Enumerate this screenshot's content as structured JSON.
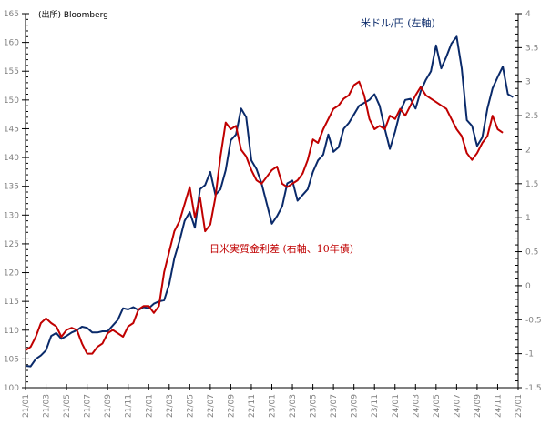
{
  "chart_data": {
    "type": "line",
    "source_note": "(出所) Bloomberg",
    "x_tick_labels": [
      "21/01",
      "21/03",
      "21/05",
      "21/07",
      "21/09",
      "21/11",
      "22/01",
      "22/03",
      "22/05",
      "22/07",
      "22/09",
      "22/11",
      "23/01",
      "23/03",
      "23/05",
      "23/07",
      "23/09",
      "23/11",
      "24/01",
      "24/03",
      "24/05",
      "24/07",
      "24/09",
      "24/11",
      "25/01"
    ],
    "x_range": [
      "2021-01",
      "2025-01"
    ],
    "left_axis": {
      "range": [
        100,
        165
      ],
      "ticks": [
        100,
        105,
        110,
        115,
        120,
        125,
        130,
        135,
        140,
        145,
        150,
        155,
        160,
        165
      ]
    },
    "right_axis": {
      "range": [
        -1.5,
        4
      ],
      "ticks": [
        "-1.5",
        "-1",
        "-0.5",
        "0",
        "0.5",
        "1",
        "1.5",
        "2",
        "2.5",
        "3",
        "3.5",
        "4"
      ]
    },
    "grid": false,
    "x_start": "2021-01",
    "points_per_month": 2,
    "series": [
      {
        "name": "米ドル/円 (左軸)",
        "axis": "left",
        "color": "#0a2a6a",
        "values": [
          103.8,
          103.7,
          105.0,
          105.6,
          106.5,
          109.0,
          109.5,
          108.5,
          109.0,
          109.6,
          110.0,
          110.6,
          110.4,
          109.6,
          109.6,
          109.8,
          109.8,
          110.8,
          111.8,
          113.8,
          113.6,
          114.0,
          113.5,
          114.0,
          113.8,
          114.6,
          115.0,
          115.2,
          118.0,
          122.5,
          125.5,
          129.0,
          130.5,
          127.8,
          134.5,
          135.2,
          137.5,
          133.5,
          134.5,
          137.8,
          143.0,
          144.0,
          148.5,
          147.0,
          139.5,
          138.0,
          135.5,
          132.0,
          128.5,
          129.8,
          131.5,
          135.5,
          136.0,
          132.5,
          133.5,
          134.5,
          137.5,
          139.5,
          140.5,
          144.0,
          141.0,
          141.8,
          145.0,
          146.0,
          147.5,
          149.0,
          149.5,
          150.0,
          151.0,
          149.0,
          145.0,
          141.5,
          144.5,
          148.0,
          150.0,
          150.2,
          148.5,
          151.5,
          153.5,
          155.0,
          159.5,
          155.5,
          157.5,
          159.8,
          161.0,
          155.5,
          146.5,
          145.5,
          142.0,
          143.5,
          148.5,
          152.0,
          154.0,
          155.8,
          151.0,
          150.5
        ]
      },
      {
        "name": "日米実質金利差 (右軸、10年債)",
        "axis": "right",
        "color": "#c00000",
        "values": [
          -0.95,
          -0.9,
          -0.75,
          -0.55,
          -0.48,
          -0.55,
          -0.6,
          -0.75,
          -0.65,
          -0.62,
          -0.65,
          -0.85,
          -1.0,
          -1.0,
          -0.9,
          -0.85,
          -0.7,
          -0.65,
          -0.7,
          -0.75,
          -0.6,
          -0.55,
          -0.35,
          -0.3,
          -0.3,
          -0.4,
          -0.3,
          0.2,
          0.5,
          0.8,
          0.95,
          1.2,
          1.45,
          1.0,
          1.3,
          0.8,
          0.9,
          1.3,
          1.9,
          2.4,
          2.3,
          2.35,
          2.0,
          1.9,
          1.7,
          1.55,
          1.5,
          1.6,
          1.7,
          1.75,
          1.5,
          1.45,
          1.5,
          1.55,
          1.65,
          1.85,
          2.15,
          2.1,
          2.3,
          2.45,
          2.6,
          2.65,
          2.75,
          2.8,
          2.95,
          3.0,
          2.8,
          2.45,
          2.3,
          2.35,
          2.3,
          2.5,
          2.45,
          2.6,
          2.5,
          2.65,
          2.8,
          2.92,
          2.8,
          2.75,
          2.7,
          2.65,
          2.6,
          2.45,
          2.3,
          2.2,
          1.95,
          1.85,
          1.95,
          2.1,
          2.2,
          2.5,
          2.3,
          2.25
        ]
      }
    ]
  }
}
